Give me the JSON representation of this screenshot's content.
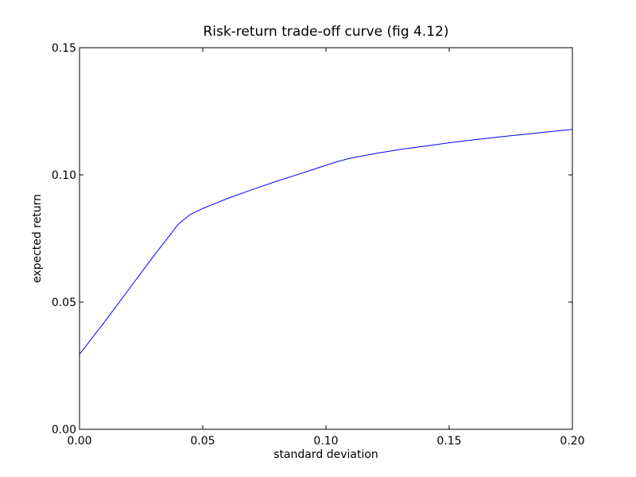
{
  "chart_data": {
    "type": "line",
    "title": "Risk-return trade-off curve (fig 4.12)",
    "xlabel": "standard deviation",
    "ylabel": "expected return",
    "xlim": [
      0.0,
      0.2
    ],
    "ylim": [
      0.0,
      0.15
    ],
    "x_ticks": [
      "0.00",
      "0.05",
      "0.10",
      "0.15",
      "0.20"
    ],
    "y_ticks": [
      "0.00",
      "0.05",
      "0.10",
      "0.15"
    ],
    "grid": false,
    "series": [
      {
        "color": "#0000ff",
        "x": [
          0.0,
          0.01,
          0.02,
          0.03,
          0.04,
          0.042,
          0.045,
          0.05,
          0.06,
          0.07,
          0.08,
          0.09,
          0.1,
          0.105,
          0.11,
          0.12,
          0.13,
          0.14,
          0.15,
          0.16,
          0.17,
          0.18,
          0.19,
          0.2
        ],
        "y": [
          0.0295,
          0.042,
          0.055,
          0.068,
          0.0805,
          0.0822,
          0.0845,
          0.0868,
          0.0907,
          0.0942,
          0.0975,
          0.1006,
          0.1038,
          0.1053,
          0.1066,
          0.1084,
          0.11,
          0.1113,
          0.1126,
          0.1138,
          0.1149,
          0.1159,
          0.1169,
          0.1179
        ]
      }
    ]
  }
}
